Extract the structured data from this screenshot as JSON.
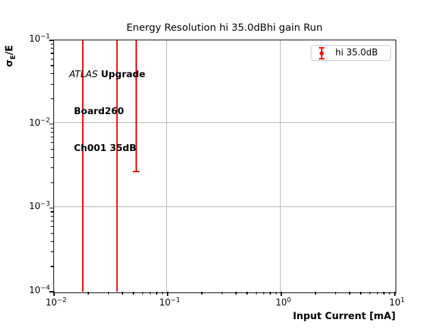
{
  "title": "Energy Resolution hi 35.0dBhi gain Run",
  "annotation": {
    "line1_italic": "ATLAS",
    "line1_bold": " Upgrade",
    "line2": "Board260",
    "line3": "Ch001 35dB"
  },
  "legend": {
    "label": "hi 35.0dB",
    "marker": "errorbar-with-dot",
    "marker_color": "#ff0000",
    "border_color": "#cccccc"
  },
  "chart_data": {
    "type": "scatter",
    "subtype": "errorbar",
    "title": "Energy Resolution hi 35.0dBhi gain Run",
    "xlabel": "Input Current [mA]",
    "ylabel": "σE/E",
    "ylabel_parts": {
      "base": "σ",
      "sub": "E",
      "suffix": "/E"
    },
    "xscale": "log",
    "yscale": "log",
    "xlim": [
      0.01,
      10
    ],
    "ylim": [
      0.0001,
      0.1
    ],
    "grid": true,
    "grid_color": "#b0b0b0",
    "axis_color": "#000000",
    "legend_position": "upper right",
    "x_ticks": [
      {
        "value": 0.01,
        "base": "10",
        "exp": "−2"
      },
      {
        "value": 0.1,
        "base": "10",
        "exp": "−1"
      },
      {
        "value": 1,
        "base": "10",
        "exp": "0"
      },
      {
        "value": 10,
        "base": "10",
        "exp": "1"
      }
    ],
    "y_ticks": [
      {
        "value": 0.1,
        "base": "10",
        "exp": "−1"
      },
      {
        "value": 0.01,
        "base": "10",
        "exp": "−2"
      },
      {
        "value": 0.001,
        "base": "10",
        "exp": "−3"
      },
      {
        "value": 0.0001,
        "base": "10",
        "exp": "−4"
      }
    ],
    "series": [
      {
        "name": "hi 35.0dB",
        "color": "#ff0000",
        "error_bars": [
          {
            "x": 0.018,
            "y_top": 0.1,
            "y_bottom": 0.0001,
            "top_clipped": true,
            "bottom_clipped": true,
            "bottom_cap": false
          },
          {
            "x": 0.036,
            "y_top": 0.1,
            "y_bottom": 0.0001,
            "top_clipped": true,
            "bottom_clipped": true,
            "bottom_cap": false
          },
          {
            "x": 0.053,
            "y_top": 0.1,
            "y_bottom": 0.0027,
            "top_clipped": true,
            "bottom_clipped": false,
            "bottom_cap": true
          }
        ]
      }
    ]
  }
}
